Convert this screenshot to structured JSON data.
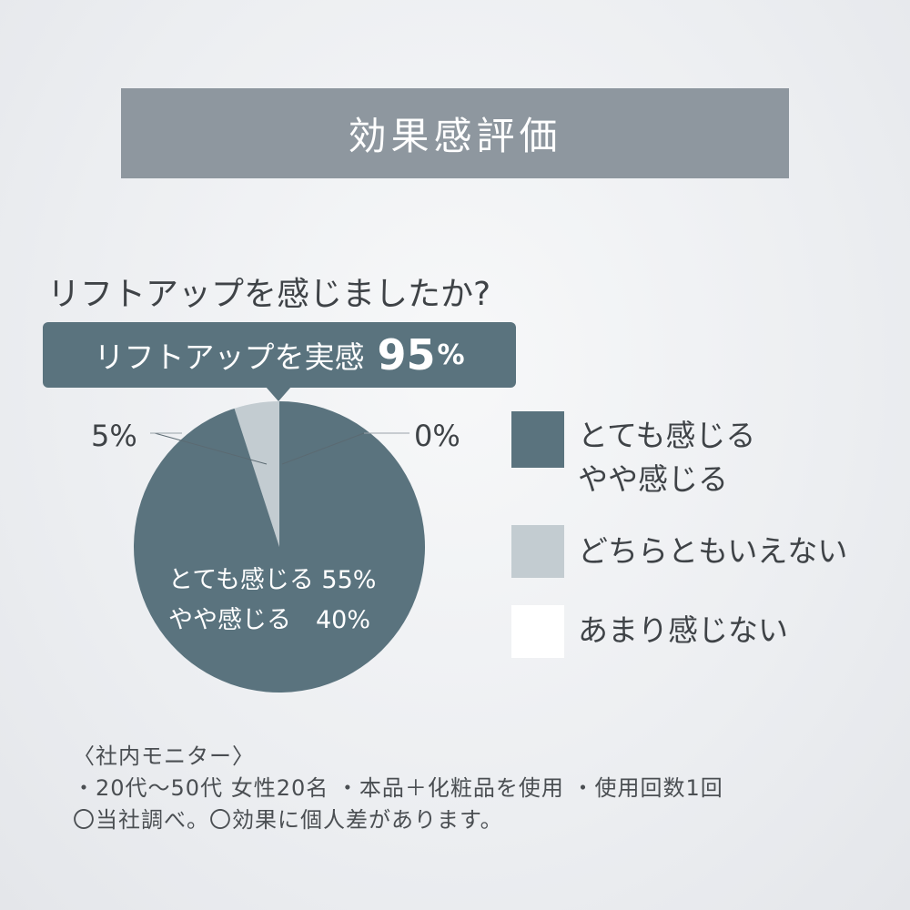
{
  "header": {
    "title": "効果感評価"
  },
  "question": "リフトアップを感じましたか?",
  "callout": {
    "label": "リフトアップを実感",
    "value": "95",
    "unit": "%"
  },
  "colors": {
    "dark": "#5a737e",
    "light": "#c3ccd1",
    "white": "#ffffff",
    "banner": "#8e979f"
  },
  "chart_data": {
    "type": "pie",
    "categories": [
      "とても感じる",
      "やや感じる",
      "どちらともいえない",
      "あまり感じない"
    ],
    "values": [
      55,
      40,
      5,
      0
    ],
    "unit": "%",
    "labels": {
      "inside_line1": "とても感じる 55%",
      "inside_line2": "やや感じる　40%",
      "left": "5%",
      "right": "0%"
    },
    "legend": [
      {
        "label_lines": [
          "とても感じる",
          "やや感じる"
        ],
        "color": "#5a737e"
      },
      {
        "label_lines": [
          "どちらともいえない"
        ],
        "color": "#c3ccd1"
      },
      {
        "label_lines": [
          "あまり感じない"
        ],
        "color": "#ffffff"
      }
    ]
  },
  "notes": [
    "〈社内モニター〉",
    "・20代〜50代 女性20名 ・本品＋化粧品を使用 ・使用回数1回",
    "〇当社調べ。〇効果に個人差があります。"
  ]
}
